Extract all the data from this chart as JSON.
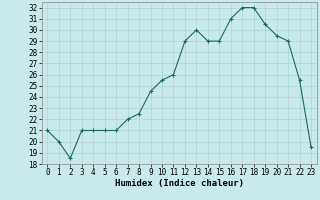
{
  "x": [
    0,
    1,
    2,
    3,
    4,
    5,
    6,
    7,
    8,
    9,
    10,
    11,
    12,
    13,
    14,
    15,
    16,
    17,
    18,
    19,
    20,
    21,
    22,
    23
  ],
  "y": [
    21,
    20,
    18.5,
    21,
    21,
    21,
    21,
    22,
    22.5,
    24.5,
    25.5,
    26,
    29,
    30,
    29,
    29,
    31,
    32,
    32,
    30.5,
    29.5,
    29,
    25.5,
    19.5
  ],
  "line_color": "#1a6b5a",
  "marker": "+",
  "marker_size": 3,
  "bg_color": "#c8eaea",
  "grid_color": "#a8cece",
  "xlabel": "Humidex (Indice chaleur)",
  "xlabel_fontsize": 6.5,
  "tick_fontsize": 5.5,
  "ylim": [
    18,
    32.5
  ],
  "xlim": [
    -0.5,
    23.5
  ],
  "yticks": [
    18,
    19,
    20,
    21,
    22,
    23,
    24,
    25,
    26,
    27,
    28,
    29,
    30,
    31,
    32
  ],
  "xticks": [
    0,
    1,
    2,
    3,
    4,
    5,
    6,
    7,
    8,
    9,
    10,
    11,
    12,
    13,
    14,
    15,
    16,
    17,
    18,
    19,
    20,
    21,
    22,
    23
  ]
}
